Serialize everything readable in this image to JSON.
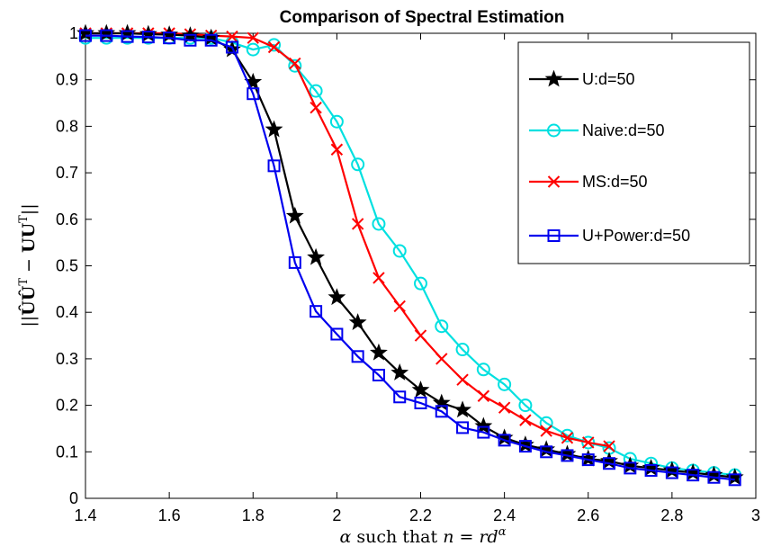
{
  "chart_data": {
    "type": "line",
    "title": "Comparison of Spectral Estimation",
    "xlabel": "α such that n = rd^α",
    "ylabel": "||ÛÛ^T − UU^T||",
    "xlim": [
      1.4,
      3.0
    ],
    "ylim": [
      0,
      1.0
    ],
    "xticks": [
      "1.4",
      "1.6",
      "1.8",
      "2",
      "2.2",
      "2.4",
      "2.6",
      "2.8",
      "3"
    ],
    "yticks": [
      "0",
      "0.1",
      "0.2",
      "0.3",
      "0.4",
      "0.5",
      "0.6",
      "0.7",
      "0.8",
      "0.9",
      "1"
    ],
    "grid": false,
    "legend_position": "top-right",
    "series": [
      {
        "name": "U:d=50",
        "color": "#000000",
        "marker": "star",
        "x": [
          1.4,
          1.45,
          1.5,
          1.55,
          1.6,
          1.65,
          1.7,
          1.75,
          1.8,
          1.85,
          1.9,
          1.95,
          2.0,
          2.05,
          2.1,
          2.15,
          2.2,
          2.25,
          2.3,
          2.35,
          2.4,
          2.45,
          2.5,
          2.55,
          2.6,
          2.65,
          2.7,
          2.75,
          2.8,
          2.85,
          2.9,
          2.95
        ],
        "y": [
          1.0,
          1.0,
          1.0,
          0.998,
          0.997,
          0.995,
          0.99,
          0.965,
          0.895,
          0.793,
          0.607,
          0.518,
          0.432,
          0.378,
          0.313,
          0.27,
          0.233,
          0.205,
          0.19,
          0.155,
          0.13,
          0.115,
          0.105,
          0.095,
          0.085,
          0.08,
          0.07,
          0.065,
          0.06,
          0.055,
          0.05,
          0.045
        ]
      },
      {
        "name": "Naive:d=50",
        "color": "#00e0e0",
        "marker": "circle",
        "x": [
          1.4,
          1.45,
          1.5,
          1.55,
          1.6,
          1.65,
          1.7,
          1.75,
          1.8,
          1.85,
          1.9,
          1.95,
          2.0,
          2.05,
          2.1,
          2.15,
          2.2,
          2.25,
          2.3,
          2.35,
          2.4,
          2.45,
          2.5,
          2.55,
          2.6,
          2.65,
          2.7,
          2.75,
          2.8,
          2.85,
          2.9,
          2.95
        ],
        "y": [
          0.99,
          0.99,
          0.99,
          0.99,
          0.99,
          0.99,
          0.99,
          0.98,
          0.965,
          0.975,
          0.93,
          0.876,
          0.81,
          0.718,
          0.59,
          0.532,
          0.462,
          0.37,
          0.32,
          0.277,
          0.245,
          0.2,
          0.162,
          0.135,
          0.12,
          0.108,
          0.085,
          0.075,
          0.065,
          0.06,
          0.055,
          0.05
        ]
      },
      {
        "name": "MS:d=50",
        "color": "#ff0000",
        "marker": "x",
        "x": [
          1.4,
          1.45,
          1.5,
          1.55,
          1.6,
          1.65,
          1.7,
          1.75,
          1.8,
          1.85,
          1.9,
          1.95,
          2.0,
          2.05,
          2.1,
          2.15,
          2.2,
          2.25,
          2.3,
          2.35,
          2.4,
          2.45,
          2.5,
          2.55,
          2.6,
          2.65
        ],
        "y": [
          1.0,
          1.0,
          1.0,
          1.0,
          1.0,
          0.998,
          0.995,
          0.993,
          0.99,
          0.97,
          0.935,
          0.84,
          0.75,
          0.59,
          0.474,
          0.413,
          0.35,
          0.3,
          0.255,
          0.22,
          0.195,
          0.168,
          0.145,
          0.13,
          0.12,
          0.112
        ]
      },
      {
        "name": "U+Power:d=50",
        "color": "#0000ee",
        "marker": "square",
        "x": [
          1.4,
          1.45,
          1.5,
          1.55,
          1.6,
          1.65,
          1.7,
          1.75,
          1.8,
          1.85,
          1.9,
          1.95,
          2.0,
          2.05,
          2.1,
          2.15,
          2.2,
          2.25,
          2.3,
          2.35,
          2.4,
          2.45,
          2.5,
          2.55,
          2.6,
          2.65,
          2.7,
          2.75,
          2.8,
          2.85,
          2.9,
          2.95
        ],
        "y": [
          0.995,
          0.995,
          0.993,
          0.992,
          0.99,
          0.985,
          0.985,
          0.97,
          0.87,
          0.715,
          0.507,
          0.402,
          0.353,
          0.305,
          0.265,
          0.218,
          0.205,
          0.187,
          0.152,
          0.142,
          0.125,
          0.112,
          0.1,
          0.092,
          0.083,
          0.075,
          0.065,
          0.06,
          0.055,
          0.05,
          0.045,
          0.04
        ]
      }
    ]
  }
}
